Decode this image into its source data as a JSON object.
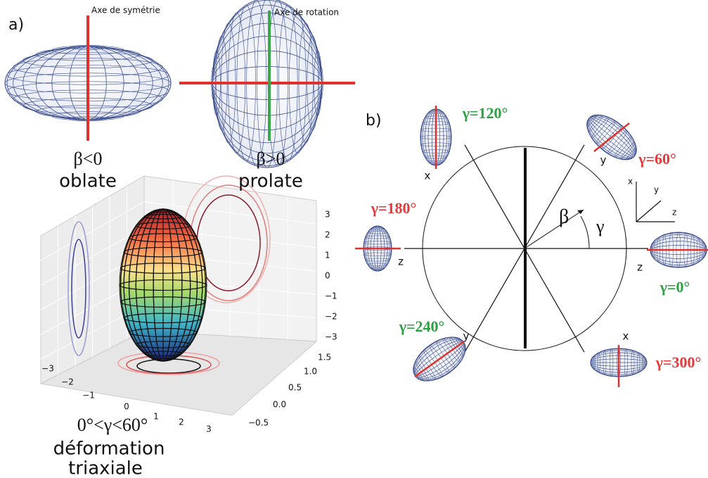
{
  "panel_a": {
    "label": "a)",
    "oblate": {
      "axis_label": "Axe de symétrie",
      "condition": "β<0",
      "name": "oblate"
    },
    "prolate": {
      "axis_label": "Axe de rotation",
      "condition": "β>0",
      "name": "prolate"
    },
    "triaxial": {
      "condition": "0°<γ<60°",
      "name_lines": [
        "déformation",
        "triaxiale"
      ],
      "z_ticks": [
        "3",
        "2",
        "1",
        "0",
        "−1",
        "−2",
        "−3"
      ],
      "depth_ticks": [
        "1.5",
        "1.0",
        "0.5",
        "0.0",
        "−0.5"
      ],
      "x_ticks": [
        "−3",
        "−2",
        "−1",
        "0",
        "1",
        "2",
        "3"
      ]
    }
  },
  "panel_b": {
    "label": "b)",
    "beta": "β",
    "gamma": "γ",
    "triad": [
      "x",
      "y",
      "z"
    ],
    "orientations": [
      {
        "label": "γ=0°",
        "axis": "z"
      },
      {
        "label": "γ=60°",
        "axis": "y"
      },
      {
        "label": "γ=120°",
        "axis": "x"
      },
      {
        "label": "γ=180°",
        "axis": "z"
      },
      {
        "label": "γ=240°",
        "axis": "y"
      },
      {
        "label": "γ=300°",
        "axis": "x"
      }
    ]
  }
}
